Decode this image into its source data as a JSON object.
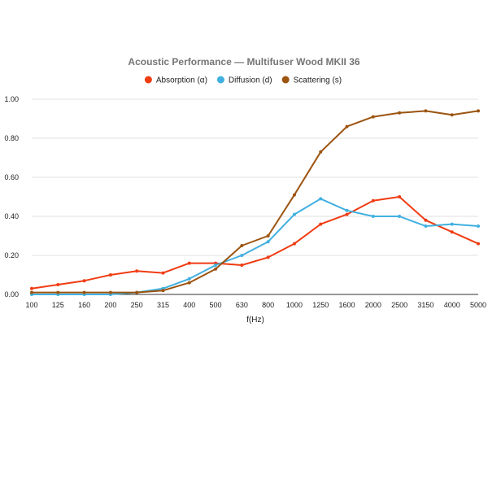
{
  "chart_data": {
    "type": "line",
    "title": "Acoustic Performance — Multifuser Wood MKII 36",
    "xlabel": "f(Hz)",
    "ylabel": "",
    "categories": [
      "100",
      "125",
      "160",
      "200",
      "250",
      "315",
      "400",
      "500",
      "630",
      "800",
      "1000",
      "1250",
      "1600",
      "2000",
      "2500",
      "3150",
      "4000",
      "5000"
    ],
    "ylim": [
      0,
      1
    ],
    "yticks": [
      "0.00",
      "0.20",
      "0.40",
      "0.60",
      "0.80",
      "1.00"
    ],
    "grid": true,
    "legend_position": "top",
    "series": [
      {
        "name": "Absorption (α)",
        "color": "#f03c13",
        "values": [
          0.03,
          0.05,
          0.07,
          0.1,
          0.12,
          0.11,
          0.16,
          0.16,
          0.15,
          0.19,
          0.26,
          0.36,
          0.41,
          0.48,
          0.5,
          0.38,
          0.32,
          0.26
        ]
      },
      {
        "name": "Diffusion (d)",
        "color": "#40b0e0",
        "values": [
          0.0,
          0.0,
          0.0,
          0.0,
          0.01,
          0.03,
          0.08,
          0.15,
          0.2,
          0.27,
          0.41,
          0.49,
          0.43,
          0.4,
          0.4,
          0.35,
          0.36,
          0.35
        ]
      },
      {
        "name": "Scattering (s)",
        "color": "#9c5410",
        "values": [
          0.01,
          0.01,
          0.01,
          0.01,
          0.01,
          0.02,
          0.06,
          0.13,
          0.25,
          0.3,
          0.51,
          0.73,
          0.86,
          0.91,
          0.93,
          0.94,
          0.92,
          0.94
        ]
      }
    ]
  }
}
